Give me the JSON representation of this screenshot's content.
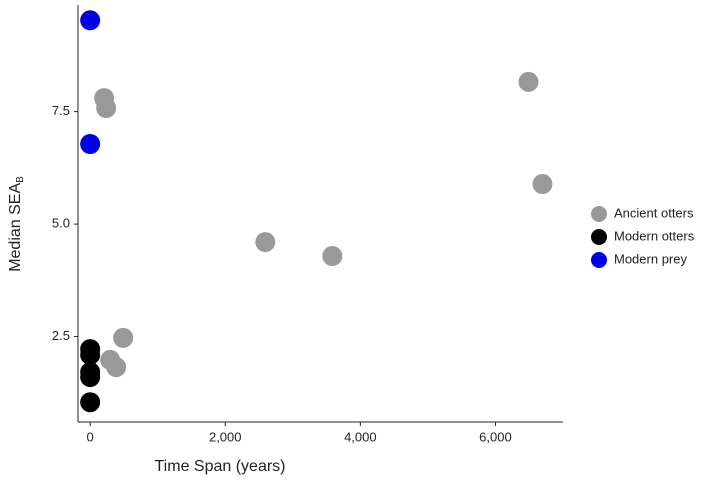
{
  "chart_data": {
    "type": "scatter",
    "x_label": "Time Span (years)",
    "y_label": {
      "text": "Median SEA",
      "subscript": "B"
    },
    "xlim": [
      -180,
      7000
    ],
    "ylim": [
      0.6,
      9.87
    ],
    "xticks": [
      0,
      {
        "value": 2000,
        "label": "2,000"
      },
      {
        "value": 4000,
        "label": "4,000"
      },
      {
        "value": 6000,
        "label": "6,000"
      }
    ],
    "yticks": [
      2.5,
      {
        "value": 5.0,
        "label": "5.0"
      },
      7.5
    ],
    "grid": false,
    "legend": "right",
    "series": [
      {
        "name": "Ancient otters",
        "color": "#999999",
        "x": [
          207,
          237,
          6489,
          6696,
          2593,
          3585,
          489,
          296,
          385
        ],
        "values": [
          7.8,
          7.58,
          8.16,
          5.89,
          4.6,
          4.29,
          2.47,
          1.98,
          1.82
        ]
      },
      {
        "name": "Modern otters",
        "color": "#000000",
        "x": [
          0,
          0,
          0,
          0,
          0
        ],
        "values": [
          2.22,
          2.09,
          1.71,
          1.6,
          1.04
        ]
      },
      {
        "name": "Modern prey",
        "color": "#0000e6",
        "x": [
          0,
          0
        ],
        "values": [
          9.53,
          6.78
        ]
      }
    ]
  }
}
